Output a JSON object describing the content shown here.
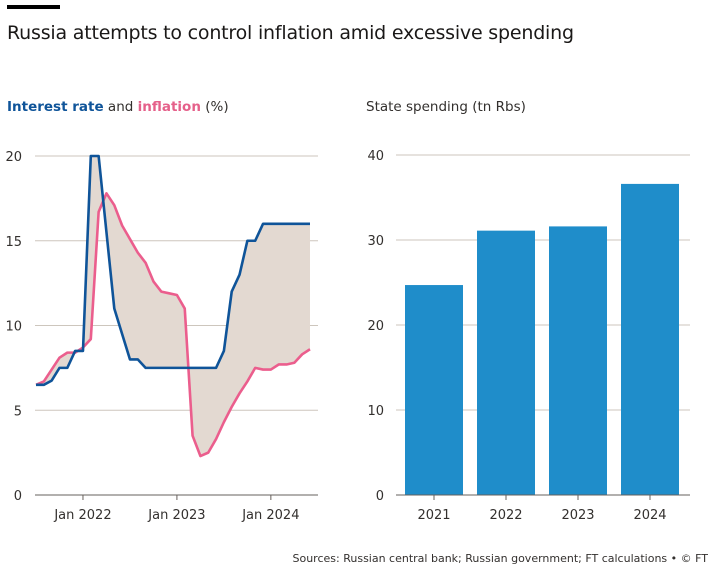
{
  "title": "Russia attempts to control inflation amid excessive spending",
  "source": "Sources: Russian central bank; Russian government; FT calculations • © FT",
  "colors": {
    "interest_rate": "#0f5499",
    "inflation": "#eb5e8d",
    "gap_fill": "#e3d9d1",
    "bar": "#1f8dca",
    "grid": "#cdc6bd",
    "axis": "#66605c"
  },
  "chart_data": [
    {
      "type": "line",
      "title_parts": {
        "series1": "Interest rate",
        "joiner": " and ",
        "series2": "inflation",
        "unit": " (%)"
      },
      "x": [
        "Jul 2021",
        "Aug 2021",
        "Sep 2021",
        "Oct 2021",
        "Nov 2021",
        "Dec 2021",
        "Jan 2022",
        "Feb 2022",
        "Mar 2022",
        "Apr 2022",
        "May 2022",
        "Jun 2022",
        "Jul 2022",
        "Aug 2022",
        "Sep 2022",
        "Oct 2022",
        "Nov 2022",
        "Dec 2022",
        "Jan 2023",
        "Feb 2023",
        "Mar 2023",
        "Apr 2023",
        "May 2023",
        "Jun 2023",
        "Jul 2023",
        "Aug 2023",
        "Sep 2023",
        "Oct 2023",
        "Nov 2023",
        "Dec 2023",
        "Jan 2024",
        "Feb 2024",
        "Mar 2024",
        "Apr 2024",
        "May 2024",
        "Jun 2024"
      ],
      "series": [
        {
          "name": "Interest rate",
          "values": [
            6.5,
            6.5,
            6.75,
            7.5,
            7.5,
            8.5,
            8.5,
            20,
            20,
            15.5,
            11,
            9.5,
            8,
            8,
            7.5,
            7.5,
            7.5,
            7.5,
            7.5,
            7.5,
            7.5,
            7.5,
            7.5,
            7.5,
            8.5,
            12,
            13,
            15,
            15,
            16,
            16,
            16,
            16,
            16,
            16,
            16
          ]
        },
        {
          "name": "Inflation",
          "values": [
            6.5,
            6.7,
            7.4,
            8.1,
            8.4,
            8.4,
            8.7,
            9.2,
            16.7,
            17.8,
            17.1,
            15.9,
            15.1,
            14.3,
            13.7,
            12.6,
            12.0,
            11.9,
            11.8,
            11.0,
            3.5,
            2.3,
            2.5,
            3.3,
            4.3,
            5.2,
            6.0,
            6.7,
            7.5,
            7.4,
            7.4,
            7.7,
            7.7,
            7.8,
            8.3,
            8.6
          ]
        }
      ],
      "yticks": [
        "0",
        "5",
        "10",
        "15",
        "20"
      ],
      "ylim": [
        0,
        20
      ],
      "xticks": [
        {
          "label": "Jan 2022",
          "index": 6
        },
        {
          "label": "Jan 2023",
          "index": 18
        },
        {
          "label": "Jan 2024",
          "index": 30
        }
      ],
      "grid": true
    },
    {
      "type": "bar",
      "title": "State spending (tn Rbs)",
      "categories": [
        "2021",
        "2022",
        "2023",
        "2024"
      ],
      "values": [
        24.7,
        31.1,
        31.6,
        36.6
      ],
      "yticks": [
        "0",
        "10",
        "20",
        "30",
        "40"
      ],
      "ylim": [
        0,
        40
      ],
      "grid": true
    }
  ]
}
